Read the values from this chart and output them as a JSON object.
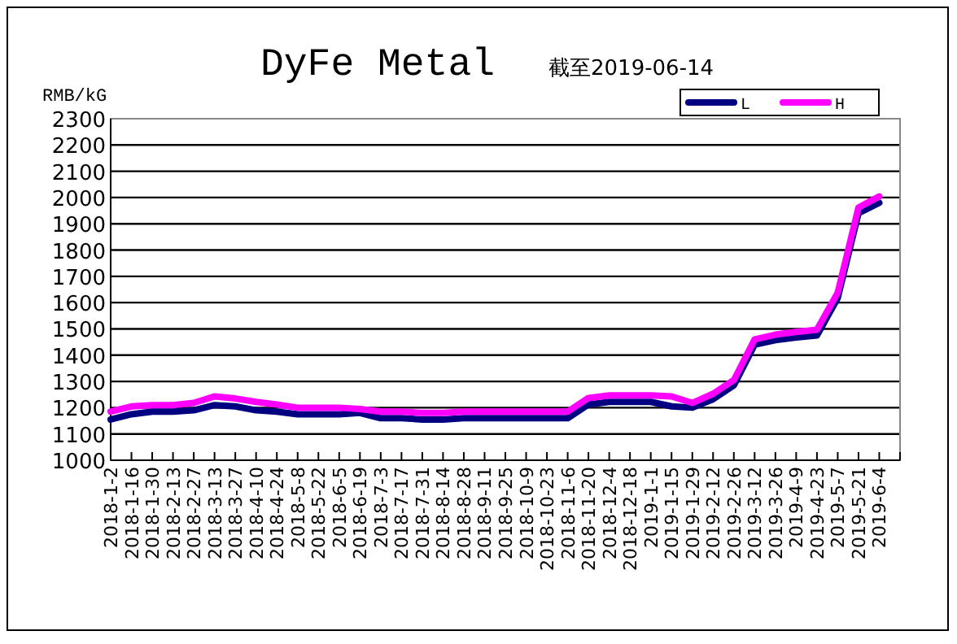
{
  "chart_data": {
    "type": "line",
    "title": "DyFe Metal",
    "subtitle": "截至2019-06-14",
    "ylabel": "RMB/kG",
    "categories": [
      "2018-1-2",
      "2018-1-16",
      "2018-1-30",
      "2018-2-13",
      "2018-2-27",
      "2018-3-13",
      "2018-3-27",
      "2018-4-10",
      "2018-4-24",
      "2018-5-8",
      "2018-5-22",
      "2018-6-5",
      "2018-6-19",
      "2018-7-3",
      "2018-7-17",
      "2018-7-31",
      "2018-8-14",
      "2018-8-28",
      "2018-9-11",
      "2018-9-25",
      "2018-10-9",
      "2018-10-23",
      "2018-11-6",
      "2018-11-20",
      "2018-12-4",
      "2018-12-18",
      "2019-1-1",
      "2019-1-15",
      "2019-1-29",
      "2019-2-12",
      "2019-2-26",
      "2019-3-12",
      "2019-3-26",
      "2019-4-9",
      "2019-4-23",
      "2019-5-7",
      "2019-5-21",
      "2019-6-4",
      null
    ],
    "series": [
      {
        "name": "L",
        "color": "#000080",
        "values": [
          1155,
          1175,
          1185,
          1185,
          1190,
          1210,
          1205,
          1190,
          1185,
          1175,
          1175,
          1175,
          1180,
          1160,
          1160,
          1155,
          1155,
          1160,
          1160,
          1160,
          1160,
          1160,
          1160,
          1212,
          1222,
          1222,
          1222,
          1205,
          1200,
          1232,
          1285,
          1440,
          1457,
          1467,
          1475,
          1617,
          1940,
          1980,
          null
        ]
      },
      {
        "name": "H",
        "color": "#ff00ff",
        "values": [
          1185,
          1205,
          1210,
          1210,
          1218,
          1243,
          1235,
          1222,
          1212,
          1200,
          1200,
          1200,
          1195,
          1185,
          1185,
          1180,
          1180,
          1185,
          1185,
          1185,
          1185,
          1185,
          1185,
          1237,
          1247,
          1247,
          1247,
          1243,
          1218,
          1253,
          1305,
          1460,
          1478,
          1488,
          1497,
          1638,
          1962,
          2004,
          null
        ]
      }
    ],
    "ylim": [
      1000,
      2300
    ],
    "yticks": [
      1000,
      1100,
      1200,
      1300,
      1400,
      1500,
      1600,
      1700,
      1800,
      1900,
      2000,
      2100,
      2200,
      2300
    ],
    "grid": "y",
    "legend": "top right",
    "marker": "none",
    "line_style": "solid"
  }
}
